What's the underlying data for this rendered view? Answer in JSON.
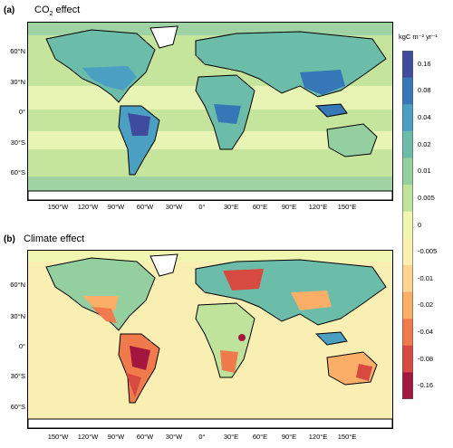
{
  "panel_a": {
    "label": "(a)",
    "title_pre": "CO",
    "title_sub": "2",
    "title_post": " effect"
  },
  "panel_b": {
    "label": "(b)",
    "title": "Climate effect"
  },
  "lat_labels": [
    "60°N",
    "30°N",
    "0°",
    "30°S",
    "60°S"
  ],
  "lon_labels": [
    "150°W",
    "120°W",
    "90°W",
    "60°W",
    "30°W",
    "0°",
    "30°E",
    "60°E",
    "90°E",
    "120°E",
    "150°E"
  ],
  "colorbar": {
    "unit": "kgC  m⁻²  yr⁻¹",
    "ticks": [
      "0.16",
      "0.08",
      "0.04",
      "0.02",
      "0.01",
      "0.005",
      "0",
      "-0.005",
      "-0.01",
      "-0.02",
      "-0.04",
      "-0.08",
      "-0.16"
    ],
    "colors": [
      "#3f4c9e",
      "#3577b7",
      "#4b9fc2",
      "#6bbda9",
      "#93cf9f",
      "#c0e39c",
      "#f0f7b0",
      "#fbf0b0",
      "#fdd590",
      "#fbae68",
      "#f07a4c",
      "#d74a42",
      "#a3163f"
    ]
  },
  "map_colors": {
    "ocean_a": "#c6e59c",
    "ocean_b": "#f9efb3",
    "coast": "#000000"
  }
}
